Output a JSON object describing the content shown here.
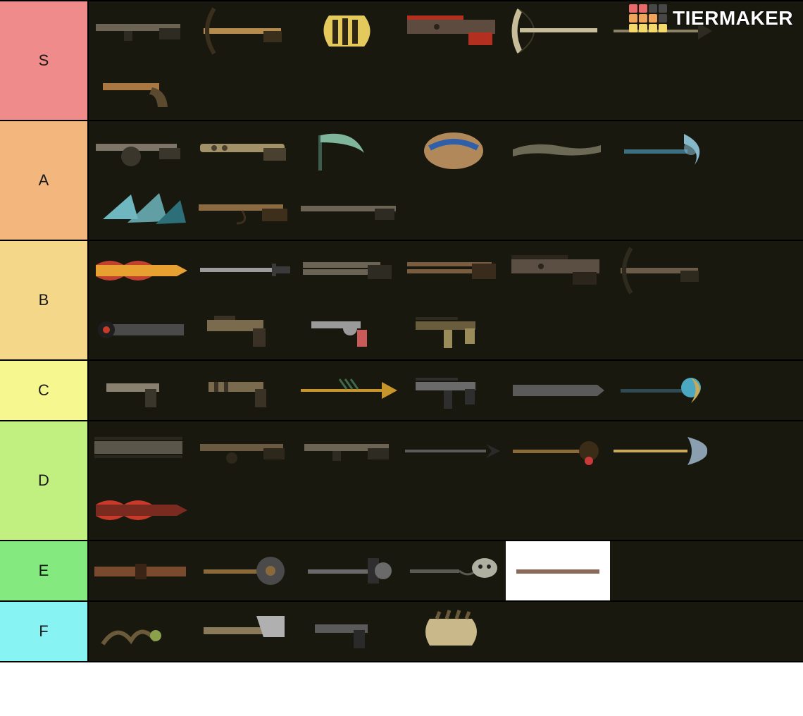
{
  "brand": "TIERMAKER",
  "logo_colors": [
    "#e96a6a",
    "#e96a6a",
    "#474747",
    "#474747",
    "#f0a35b",
    "#f0a35b",
    "#f0a35b",
    "#474747",
    "#f5d96b",
    "#f5d96b",
    "#f5d96b",
    "#f5d96b"
  ],
  "item_bg": "#18180f",
  "tiers": [
    {
      "label": "S",
      "bg": "#f08b8b",
      "items": [
        {
          "name": "weapon-s-1",
          "shape": "rifle",
          "colors": [
            "#6b6354",
            "#2e2b22"
          ]
        },
        {
          "name": "weapon-s-2",
          "shape": "crossbow",
          "colors": [
            "#b68c4e",
            "#3a2f1d"
          ]
        },
        {
          "name": "weapon-s-3",
          "shape": "gauntlet",
          "colors": [
            "#e4c95d",
            "#2f2712"
          ]
        },
        {
          "name": "weapon-s-4",
          "shape": "heavy-gun",
          "colors": [
            "#5c4b3e",
            "#b33021",
            "#2b231a"
          ]
        },
        {
          "name": "weapon-s-5",
          "shape": "bone-bow",
          "colors": [
            "#c8bd9a",
            "#3b3825"
          ]
        },
        {
          "name": "weapon-s-6",
          "shape": "spear",
          "colors": [
            "#8b8268",
            "#2e2b22"
          ]
        },
        {
          "name": "weapon-s-7",
          "shape": "flintlock",
          "colors": [
            "#a97742",
            "#5c4a30"
          ]
        }
      ]
    },
    {
      "label": "A",
      "bg": "#f3b77e",
      "items": [
        {
          "name": "weapon-a-1",
          "shape": "drum-rifle",
          "colors": [
            "#7c7568",
            "#3a362c"
          ]
        },
        {
          "name": "weapon-a-2",
          "shape": "ornate-rifle",
          "colors": [
            "#a2926a",
            "#4a4030"
          ]
        },
        {
          "name": "weapon-a-3",
          "shape": "scythe-claw",
          "colors": [
            "#7fb59a",
            "#3e5c4e"
          ]
        },
        {
          "name": "weapon-a-4",
          "shape": "shell-shield",
          "colors": [
            "#b1885a",
            "#2f5fa8",
            "#3a2e1c"
          ]
        },
        {
          "name": "weapon-a-5",
          "shape": "branch-gun",
          "colors": [
            "#6c6a55",
            "#2e2d22"
          ]
        },
        {
          "name": "weapon-a-6",
          "shape": "ice-axe",
          "colors": [
            "#86b9c9",
            "#3e6f80"
          ]
        },
        {
          "name": "weapon-a-7",
          "shape": "ice-spikes",
          "colors": [
            "#6fb7c0",
            "#2c6f78"
          ]
        },
        {
          "name": "weapon-a-8",
          "shape": "lever-rifle",
          "colors": [
            "#8b6a42",
            "#3e2f1c"
          ]
        },
        {
          "name": "weapon-a-9",
          "shape": "long-barrel",
          "colors": [
            "#6b6354",
            "#2e2b22"
          ]
        }
      ]
    },
    {
      "label": "B",
      "bg": "#f5d78a",
      "items": [
        {
          "name": "weapon-b-1",
          "shape": "flame-blade",
          "colors": [
            "#c2402f",
            "#e8a030",
            "#3a1a12"
          ]
        },
        {
          "name": "weapon-b-2",
          "shape": "katana",
          "colors": [
            "#9b9b9b",
            "#3a3a3a"
          ]
        },
        {
          "name": "weapon-b-3",
          "shape": "shotgun",
          "colors": [
            "#6b6354",
            "#2e2b22"
          ]
        },
        {
          "name": "weapon-b-4",
          "shape": "double-rifle",
          "colors": [
            "#7a5c3e",
            "#3a2c1c"
          ]
        },
        {
          "name": "weapon-b-5",
          "shape": "heavy-gun",
          "colors": [
            "#5a4f42",
            "#2b251c"
          ]
        },
        {
          "name": "weapon-b-6",
          "shape": "crossbow",
          "colors": [
            "#6a5d48",
            "#2e2a1e"
          ]
        },
        {
          "name": "weapon-b-7",
          "shape": "eye-blade",
          "colors": [
            "#c83a2a",
            "#4a4a4a",
            "#1e1e1e"
          ]
        },
        {
          "name": "weapon-b-8",
          "shape": "scrap-pistol",
          "colors": [
            "#7a6a4e",
            "#3a3224"
          ]
        },
        {
          "name": "weapon-b-9",
          "shape": "revolver",
          "colors": [
            "#9a9a9a",
            "#c85a5a",
            "#3a3a3a"
          ]
        },
        {
          "name": "weapon-b-10",
          "shape": "smg",
          "colors": [
            "#6a5d3e",
            "#9a8b5a",
            "#2e2a1c"
          ]
        }
      ]
    },
    {
      "label": "C",
      "bg": "#f7f790",
      "items": [
        {
          "name": "weapon-c-1",
          "shape": "pistol",
          "colors": [
            "#8a8070",
            "#3a362c"
          ]
        },
        {
          "name": "weapon-c-2",
          "shape": "wrapped-pistol",
          "colors": [
            "#7a6a4e",
            "#3a3224"
          ]
        },
        {
          "name": "weapon-c-3",
          "shape": "feather-spear",
          "colors": [
            "#c8952a",
            "#3e6a4a"
          ]
        },
        {
          "name": "weapon-c-4",
          "shape": "smg",
          "colors": [
            "#6a6a6a",
            "#2e2e2e"
          ]
        },
        {
          "name": "weapon-c-5",
          "shape": "blade-flat",
          "colors": [
            "#5a5a5a",
            "#2a2a2a"
          ]
        },
        {
          "name": "weapon-c-6",
          "shape": "orb-axe",
          "colors": [
            "#4aa8c0",
            "#c8a85a",
            "#2e4a52"
          ]
        }
      ]
    },
    {
      "label": "D",
      "bg": "#c2f080",
      "items": [
        {
          "name": "weapon-d-1",
          "shape": "chain-gun",
          "colors": [
            "#5a564a",
            "#2a281e"
          ]
        },
        {
          "name": "weapon-d-2",
          "shape": "trinket-rifle",
          "colors": [
            "#6a5a42",
            "#2e281c"
          ]
        },
        {
          "name": "weapon-d-3",
          "shape": "rifle",
          "colors": [
            "#6b6354",
            "#2e2b22"
          ]
        },
        {
          "name": "weapon-d-4",
          "shape": "harpoon",
          "colors": [
            "#5a5a5a",
            "#2a2a2a"
          ]
        },
        {
          "name": "weapon-d-5",
          "shape": "rose-mace",
          "colors": [
            "#8a6a3a",
            "#c83a3a",
            "#3a2c16"
          ]
        },
        {
          "name": "weapon-d-6",
          "shape": "glaive",
          "colors": [
            "#8aa0b0",
            "#c8a85a",
            "#3a4650"
          ]
        },
        {
          "name": "weapon-d-7",
          "shape": "flame-blade",
          "colors": [
            "#c83a2a",
            "#7a2a1e"
          ]
        }
      ]
    },
    {
      "label": "E",
      "bg": "#84ea80",
      "items": [
        {
          "name": "weapon-e-1",
          "shape": "belt",
          "colors": [
            "#7a4a2e",
            "#3a2416"
          ]
        },
        {
          "name": "weapon-e-2",
          "shape": "saw-blade",
          "colors": [
            "#8a6a3a",
            "#4a4a4a"
          ]
        },
        {
          "name": "weapon-e-3",
          "shape": "wheel-hammer",
          "colors": [
            "#6a6a6a",
            "#2e2e2e"
          ]
        },
        {
          "name": "weapon-e-4",
          "shape": "skull-flail",
          "colors": [
            "#b0b0a0",
            "#5a5a52"
          ]
        },
        {
          "name": "weapon-e-5",
          "shape": "rod",
          "colors": [
            "#8a6a5a",
            "#ffffff"
          ],
          "bg": "#ffffff"
        }
      ]
    },
    {
      "label": "F",
      "bg": "#87f3f3",
      "items": [
        {
          "name": "weapon-f-1",
          "shape": "root-staff",
          "colors": [
            "#6a5a3a",
            "#8aa04a"
          ]
        },
        {
          "name": "weapon-f-2",
          "shape": "cleaver-gun",
          "colors": [
            "#8a7a5a",
            "#b0b0b0"
          ]
        },
        {
          "name": "weapon-f-3",
          "shape": "pistol",
          "colors": [
            "#5a5a5a",
            "#2a2a2a"
          ]
        },
        {
          "name": "weapon-f-4",
          "shape": "bone-fist",
          "colors": [
            "#c8b88a",
            "#6a5a3a"
          ]
        }
      ]
    }
  ]
}
